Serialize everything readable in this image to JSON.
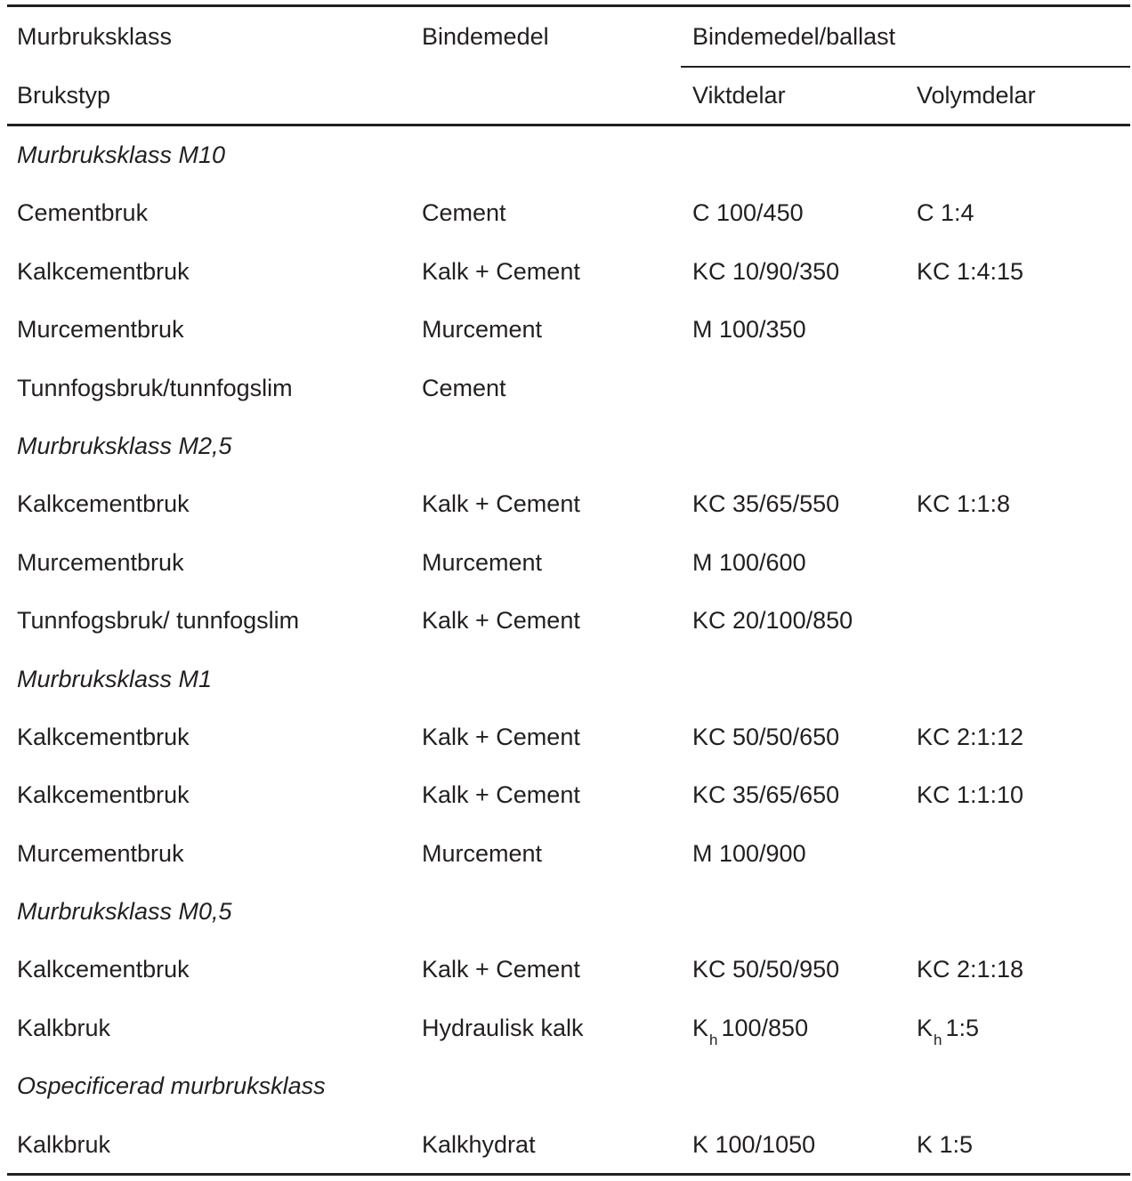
{
  "headers": {
    "murbruksklass": "Murbruksklass",
    "bindemedel": "Bindemedel",
    "bindemedel_ballast": "Bindemedel/ballast",
    "brukstyp": "Brukstyp",
    "viktdelar": "Viktdelar",
    "volymdelar": "Volymdelar"
  },
  "rows": [
    {
      "section": "Murbruksklass M10"
    },
    {
      "type": "Cementbruk",
      "binder": "Cement",
      "weight": "C 100/450",
      "volume": "C 1:4"
    },
    {
      "type": "Kalkcementbruk",
      "binder": "Kalk + Cement",
      "weight": "KC 10/90/350",
      "volume": "KC 1:4:15"
    },
    {
      "type": "Murcementbruk",
      "binder": "Murcement",
      "weight": "M 100/350",
      "volume": ""
    },
    {
      "type": "Tunnfogsbruk/tunnfogslim",
      "binder": "Cement",
      "weight": "",
      "volume": ""
    },
    {
      "section": "Murbruksklass M2,5"
    },
    {
      "type": "Kalkcementbruk",
      "binder": "Kalk + Cement",
      "weight": "KC 35/65/550",
      "volume": "KC 1:1:8"
    },
    {
      "type": "Murcementbruk",
      "binder": "Murcement",
      "weight": "M 100/600",
      "volume": ""
    },
    {
      "type": "Tunnfogsbruk/ tunnfogslim",
      "binder": "Kalk + Cement",
      "weight": "KC 20/100/850",
      "volume": ""
    },
    {
      "section": "Murbruksklass M1"
    },
    {
      "type": "Kalkcementbruk",
      "binder": "Kalk + Cement",
      "weight": "KC 50/50/650",
      "volume": "KC 2:1:12"
    },
    {
      "type": "Kalkcementbruk",
      "binder": "Kalk + Cement",
      "weight": "KC 35/65/650",
      "volume": "KC 1:1:10"
    },
    {
      "type": "Murcementbruk",
      "binder": "Murcement",
      "weight": "M 100/900",
      "volume": ""
    },
    {
      "section": "Murbruksklass M0,5"
    },
    {
      "type": "Kalkcementbruk",
      "binder": "Kalk + Cement",
      "weight": "KC 50/50/950",
      "volume": "KC 2:1:18"
    },
    {
      "type": "Kalkbruk",
      "binder": "Hydraulisk kalk",
      "weight_prefix": "K",
      "weight_sub": "h",
      "weight_rest": "100/850",
      "volume_prefix": "K",
      "volume_sub": "h",
      "volume_rest": "1:5"
    },
    {
      "section": "Ospecificerad murbruksklass"
    },
    {
      "type": "Kalkbruk",
      "binder": "Kalkhydrat",
      "weight": "K 100/1050",
      "volume": "K 1:5"
    }
  ]
}
